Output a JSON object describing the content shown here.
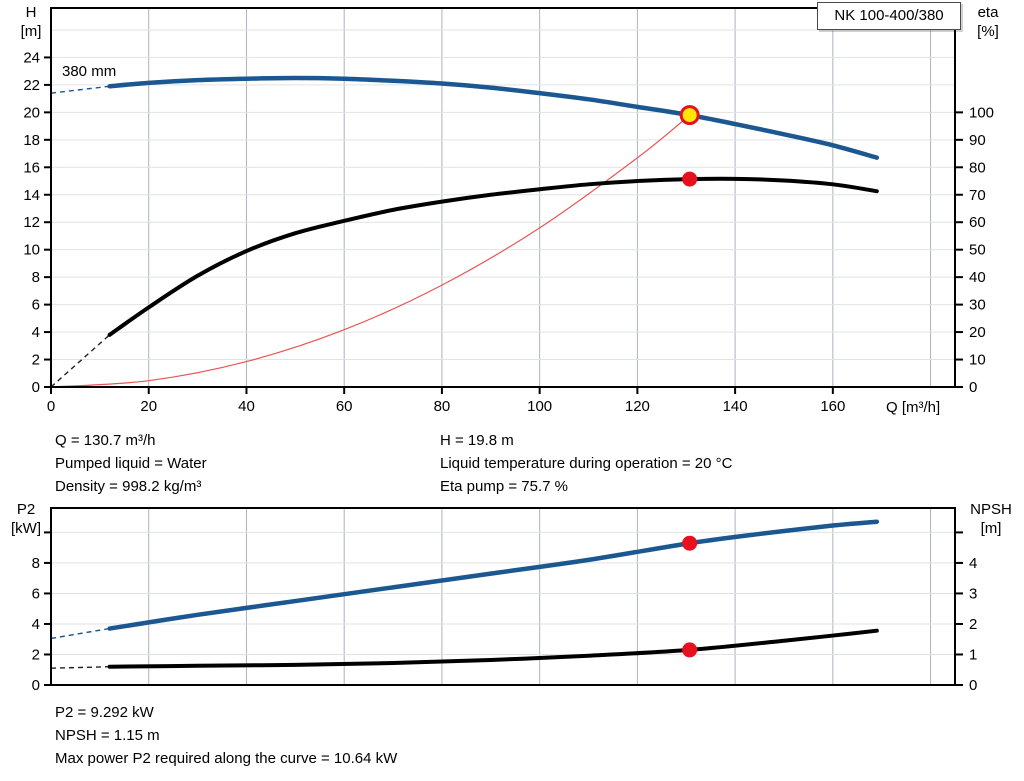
{
  "pump_model_box": "NK 100-400/380",
  "impeller_label": "380 mm",
  "colors": {
    "curve_blue": "#1b5791",
    "curve_black": "#000000",
    "system_red": "#e95454",
    "dot_red": "#e8101e",
    "dot_yellow": "#ffe60a",
    "grid_vertical": "#aeb3bb",
    "grid_horizontal": "#e0e2e6",
    "frame": "#000000"
  },
  "annotations": {
    "duty_left": [
      "Q = 130.7 m³/h",
      "Pumped liquid = Water",
      "Density = 998.2 kg/m³"
    ],
    "duty_right": [
      "H = 19.8 m",
      "Liquid temperature during operation = 20 °C",
      "Eta pump = 75.7 %"
    ],
    "power": [
      "P2 = 9.292 kW",
      "NPSH = 1.15 m",
      "Max power P2 required along the curve = 10.64 kW"
    ]
  },
  "chart_data": [
    {
      "type": "line",
      "title": "NK 100-400/380",
      "xlabel": "Q [m³/h]",
      "ylabel_left": "H [m]",
      "ylabel_left_lines": [
        "H",
        "[m]"
      ],
      "ylabel_right": "eta [%]",
      "ylabel_right_lines": [
        "eta",
        "[%]"
      ],
      "xlim": [
        0,
        185
      ],
      "ylim_left": [
        0,
        27.6
      ],
      "ylim_right": [
        0,
        138
      ],
      "x_ticks": [
        0,
        20,
        40,
        60,
        80,
        100,
        120,
        140,
        160
      ],
      "x_grid": [
        20,
        40,
        60,
        80,
        100,
        120,
        140,
        160,
        180
      ],
      "y_ticks_left": [
        0,
        2,
        4,
        6,
        8,
        10,
        12,
        14,
        16,
        18,
        20,
        22,
        24
      ],
      "y_ticks_left_unlabeled": [],
      "y_grid_left": [
        2,
        4,
        6,
        8,
        10,
        12,
        14,
        16,
        18,
        20,
        22,
        24,
        26
      ],
      "y_ticks_right": [
        0,
        10,
        20,
        30,
        40,
        50,
        60,
        70,
        80,
        90,
        100
      ],
      "y_ticks_right_unlabeled": [],
      "grid": true,
      "legend": "none",
      "series": [
        {
          "name": "system-curve",
          "axis": "left",
          "color": "#e95454",
          "width": 1.2,
          "points": [
            [
              0,
              0
            ],
            [
              20,
              0.46
            ],
            [
              40,
              1.85
            ],
            [
              60,
              4.17
            ],
            [
              80,
              7.42
            ],
            [
              100,
              11.59
            ],
            [
              120,
              16.69
            ],
            [
              130.7,
              19.8
            ]
          ]
        },
        {
          "name": "efficiency-curve-eta",
          "axis": "right",
          "color": "#000000",
          "width": 4,
          "dash_color": "#222222",
          "dashed_lead": [
            [
              0,
              0
            ],
            [
              12,
              19
            ]
          ],
          "points": [
            [
              12,
              19
            ],
            [
              20,
              29
            ],
            [
              30,
              40.5
            ],
            [
              40,
              49.5
            ],
            [
              50,
              56
            ],
            [
              60,
              60.5
            ],
            [
              70,
              64.5
            ],
            [
              80,
              67.5
            ],
            [
              90,
              70
            ],
            [
              100,
              72
            ],
            [
              110,
              73.8
            ],
            [
              120,
              75
            ],
            [
              130.7,
              75.7
            ],
            [
              140,
              75.8
            ],
            [
              150,
              75.2
            ],
            [
              160,
              73.8
            ],
            [
              169,
              71.3
            ]
          ]
        },
        {
          "name": "head-curve-380mm",
          "axis": "left",
          "color": "#1b5791",
          "width": 4.5,
          "dash_color": "#1b5791",
          "dashed_lead": [
            [
              0,
              21.4
            ],
            [
              12,
              21.9
            ]
          ],
          "points": [
            [
              12,
              21.9
            ],
            [
              20,
              22.15
            ],
            [
              30,
              22.35
            ],
            [
              40,
              22.45
            ],
            [
              50,
              22.5
            ],
            [
              60,
              22.45
            ],
            [
              70,
              22.3
            ],
            [
              80,
              22.1
            ],
            [
              90,
              21.8
            ],
            [
              100,
              21.4
            ],
            [
              110,
              20.95
            ],
            [
              120,
              20.4
            ],
            [
              130.7,
              19.8
            ],
            [
              140,
              19.15
            ],
            [
              150,
              18.4
            ],
            [
              160,
              17.6
            ],
            [
              169,
              16.7
            ]
          ]
        }
      ],
      "markers": [
        {
          "name": "duty-point-head",
          "axis": "left",
          "x": 130.7,
          "y": 19.8,
          "r": 8.5,
          "fill": "#ffe60a",
          "stroke": "#e8101e",
          "stroke_width": 3
        },
        {
          "name": "duty-point-eta",
          "axis": "right",
          "x": 130.7,
          "y": 75.7,
          "r": 7.5,
          "fill": "#e8101e",
          "stroke": "none",
          "stroke_width": 0
        }
      ]
    },
    {
      "type": "line",
      "title": "",
      "xlabel": "",
      "ylabel_left": "P2 [kW]",
      "ylabel_left_lines": [
        "P2",
        "[kW]"
      ],
      "ylabel_right": "NPSH [m]",
      "ylabel_right_lines": [
        "NPSH",
        "[m]"
      ],
      "xlim": [
        0,
        185
      ],
      "ylim_left": [
        0,
        11.6
      ],
      "ylim_right": [
        0,
        5.8
      ],
      "x_ticks": [],
      "x_grid": [
        20,
        40,
        60,
        80,
        100,
        120,
        140,
        160,
        180
      ],
      "y_ticks_left": [
        0,
        2,
        4,
        6,
        8
      ],
      "y_ticks_left_unlabeled": [
        10
      ],
      "y_grid_left": [
        2,
        4,
        6,
        8,
        10
      ],
      "y_ticks_right": [
        0,
        1,
        2,
        3,
        4
      ],
      "y_ticks_right_unlabeled": [
        5
      ],
      "grid": true,
      "legend": "none",
      "series": [
        {
          "name": "npsh-curve",
          "axis": "right",
          "color": "#000000",
          "width": 4,
          "dash_color": "#222222",
          "dashed_lead": [
            [
              0,
              0.55
            ],
            [
              12,
              0.6
            ]
          ],
          "points": [
            [
              12,
              0.6
            ],
            [
              30,
              0.63
            ],
            [
              50,
              0.66
            ],
            [
              70,
              0.72
            ],
            [
              90,
              0.82
            ],
            [
              110,
              0.96
            ],
            [
              130.7,
              1.15
            ],
            [
              150,
              1.45
            ],
            [
              160,
              1.62
            ],
            [
              169,
              1.78
            ]
          ]
        },
        {
          "name": "p2-power-curve",
          "axis": "left",
          "color": "#1b5791",
          "width": 4.5,
          "dash_color": "#1b5791",
          "dashed_lead": [
            [
              0,
              3.05
            ],
            [
              12,
              3.7
            ]
          ],
          "points": [
            [
              12,
              3.7
            ],
            [
              30,
              4.6
            ],
            [
              50,
              5.5
            ],
            [
              70,
              6.4
            ],
            [
              90,
              7.3
            ],
            [
              110,
              8.2
            ],
            [
              130.7,
              9.292
            ],
            [
              145,
              9.9
            ],
            [
              160,
              10.45
            ],
            [
              169,
              10.7
            ]
          ]
        }
      ],
      "markers": [
        {
          "name": "duty-point-p2",
          "axis": "left",
          "x": 130.7,
          "y": 9.292,
          "r": 7.5,
          "fill": "#e8101e",
          "stroke": "none",
          "stroke_width": 0
        },
        {
          "name": "duty-point-npsh",
          "axis": "right",
          "x": 130.7,
          "y": 1.15,
          "r": 7.5,
          "fill": "#e8101e",
          "stroke": "none",
          "stroke_width": 0
        }
      ]
    }
  ]
}
